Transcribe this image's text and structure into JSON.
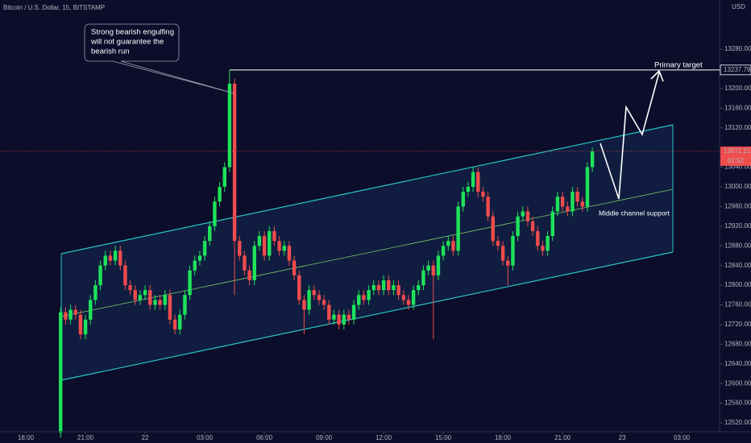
{
  "chart_data": {
    "type": "candlestick",
    "title": "Bitcoin / U.S. Dollar, 15, BITSTAMP",
    "currency": "USD",
    "countdown": "01:52",
    "up_color": "#1ee35a",
    "down_color": "#ef4c4c",
    "grid": false,
    "annotations": {
      "callout": [
        "Strong bearish engulfing",
        "will not guarantee the",
        "bearish run"
      ],
      "target": "Primary target",
      "support": "Middle channel support"
    },
    "xlim": [
      -1.3,
      34.9
    ],
    "xticks": [
      {
        "value": 0,
        "label": "18:00"
      },
      {
        "value": 3,
        "label": "21:00"
      },
      {
        "value": 6,
        "label": "22"
      },
      {
        "value": 9,
        "label": "03:00"
      },
      {
        "value": 12,
        "label": "06:00"
      },
      {
        "value": 15,
        "label": "09:00"
      },
      {
        "value": 18,
        "label": "12:00"
      },
      {
        "value": 21,
        "label": "15:00"
      },
      {
        "value": 24,
        "label": "18:00"
      },
      {
        "value": 27,
        "label": "21:00"
      },
      {
        "value": 30,
        "label": "23"
      },
      {
        "value": 33,
        "label": "03:00"
      }
    ],
    "ylim": [
      12502,
      13380
    ],
    "yticks": [
      {
        "value": 12520,
        "label": "12520.00"
      },
      {
        "value": 12560,
        "label": "12560.00"
      },
      {
        "value": 12600,
        "label": "12600.00"
      },
      {
        "value": 12640,
        "label": "12640.00"
      },
      {
        "value": 12680,
        "label": "12680.00"
      },
      {
        "value": 12720,
        "label": "12720.00"
      },
      {
        "value": 12760,
        "label": "12760.00"
      },
      {
        "value": 12800,
        "label": "12800.00"
      },
      {
        "value": 12840,
        "label": "12840.00"
      },
      {
        "value": 12880,
        "label": "12880.00"
      },
      {
        "value": 12920,
        "label": "12920.00"
      },
      {
        "value": 12960,
        "label": "12960.00"
      },
      {
        "value": 13000,
        "label": "13000.00"
      },
      {
        "value": 13040,
        "label": "13040.00"
      },
      {
        "value": 13120,
        "label": "13120.00"
      },
      {
        "value": 13160,
        "label": "13160.00"
      },
      {
        "value": 13200,
        "label": "13200.00"
      },
      {
        "value": 13280,
        "label": "13280.00"
      }
    ],
    "x": [
      1.75,
      2,
      2.25,
      2.5,
      2.75,
      3,
      3.25,
      3.5,
      3.75,
      4,
      4.25,
      4.5,
      4.75,
      5,
      5.25,
      5.5,
      5.75,
      6,
      6.25,
      6.5,
      6.75,
      7,
      7.25,
      7.5,
      7.75,
      8,
      8.25,
      8.5,
      8.75,
      9,
      9.25,
      9.5,
      9.75,
      10,
      10.25,
      10.5,
      10.75,
      11,
      11.25,
      11.5,
      11.75,
      12,
      12.25,
      12.5,
      12.75,
      13,
      13.25,
      13.5,
      13.75,
      14,
      14.25,
      14.5,
      14.75,
      15,
      15.25,
      15.5,
      15.75,
      16,
      16.25,
      16.5,
      16.75,
      17,
      17.25,
      17.5,
      17.75,
      18,
      18.25,
      18.5,
      18.75,
      19,
      19.25,
      19.5,
      19.75,
      20,
      20.25,
      20.5,
      20.75,
      21,
      21.25,
      21.5,
      21.75,
      22,
      22.25,
      22.5,
      22.75,
      23,
      23.25,
      23.5,
      23.75,
      24,
      24.25,
      24.5,
      24.75,
      25,
      25.25,
      25.5,
      25.75,
      26,
      26.25,
      26.5,
      26.75,
      27,
      27.25,
      27.5,
      27.75,
      28,
      28.25,
      28.5
    ],
    "open": [
      12500,
      12745,
      12730,
      12750,
      12740,
      12700,
      12730,
      12770,
      12800,
      12840,
      12860,
      12850,
      12870,
      12840,
      12800,
      12790,
      12770,
      12780,
      12790,
      12760,
      12770,
      12760,
      12780,
      12730,
      12710,
      12740,
      12780,
      12830,
      12850,
      12860,
      12890,
      12920,
      12970,
      13000,
      13040,
      13210,
      12890,
      12860,
      12830,
      12810,
      12880,
      12900,
      12860,
      12910,
      12890,
      12870,
      12880,
      12850,
      12820,
      12770,
      12750,
      12790,
      12780,
      12770,
      12760,
      12730,
      12740,
      12720,
      12740,
      12730,
      12760,
      12780,
      12770,
      12790,
      12800,
      12790,
      12810,
      12790,
      12800,
      12780,
      12770,
      12760,
      12790,
      12800,
      12830,
      12840,
      12820,
      12860,
      12880,
      12890,
      12870,
      12960,
      12990,
      13000,
      13030,
      12990,
      12980,
      12940,
      12890,
      12880,
      12850,
      12840,
      12900,
      12940,
      12950,
      12930,
      12910,
      12880,
      12870,
      12900,
      12950,
      12980,
      12960,
      12950,
      12990,
      12970,
      12960,
      13040
    ],
    "high": [
      12755,
      12755,
      12760,
      12760,
      12750,
      12740,
      12780,
      12810,
      12850,
      12870,
      12870,
      12880,
      12880,
      12850,
      12810,
      12800,
      12790,
      12800,
      12800,
      12780,
      12780,
      12790,
      12790,
      12740,
      12750,
      12790,
      12840,
      12860,
      12870,
      12900,
      12930,
      12980,
      13010,
      13050,
      13237.79,
      13220,
      12900,
      12870,
      12840,
      12890,
      12910,
      12910,
      12920,
      12920,
      12900,
      12890,
      12890,
      12860,
      12830,
      12780,
      12800,
      12800,
      12790,
      12780,
      12770,
      12750,
      12750,
      12750,
      12750,
      12770,
      12790,
      12790,
      12800,
      12810,
      12810,
      12820,
      12820,
      12810,
      12810,
      12790,
      12780,
      12800,
      12810,
      12840,
      12850,
      12850,
      12870,
      12890,
      12900,
      12900,
      12970,
      13000,
      13010,
      13040,
      13040,
      13000,
      12990,
      12950,
      12900,
      12890,
      12860,
      12910,
      12950,
      12960,
      12960,
      12940,
      12920,
      12890,
      12910,
      12960,
      12990,
      12990,
      12970,
      13000,
      13000,
      12980,
      13050,
      13080
    ],
    "low": [
      12490,
      12720,
      12720,
      12730,
      12690,
      12690,
      12720,
      12760,
      12790,
      12830,
      12840,
      12840,
      12830,
      12790,
      12780,
      12760,
      12760,
      12770,
      12750,
      12750,
      12750,
      12750,
      12720,
      12700,
      12700,
      12730,
      12770,
      12820,
      12840,
      12850,
      12880,
      12910,
      12960,
      12990,
      13030,
      12780,
      12850,
      12820,
      12800,
      12800,
      12870,
      12850,
      12850,
      12880,
      12860,
      12860,
      12840,
      12810,
      12760,
      12700,
      12740,
      12770,
      12760,
      12750,
      12720,
      12720,
      12710,
      12710,
      12720,
      12720,
      12750,
      12760,
      12760,
      12780,
      12780,
      12780,
      12780,
      12780,
      12770,
      12760,
      12750,
      12750,
      12780,
      12790,
      12820,
      12690,
      12810,
      12850,
      12870,
      12860,
      12860,
      12950,
      12980,
      12990,
      12980,
      12970,
      12930,
      12880,
      12870,
      12840,
      12800,
      12830,
      12890,
      12930,
      12920,
      12900,
      12870,
      12860,
      12860,
      12890,
      12940,
      12950,
      12940,
      12940,
      12960,
      12950,
      12950,
      13030
    ],
    "close": [
      12745,
      12730,
      12750,
      12740,
      12700,
      12730,
      12770,
      12800,
      12840,
      12860,
      12850,
      12870,
      12840,
      12800,
      12790,
      12770,
      12780,
      12790,
      12760,
      12770,
      12760,
      12780,
      12730,
      12710,
      12740,
      12780,
      12830,
      12850,
      12860,
      12890,
      12920,
      12970,
      13000,
      13040,
      13210,
      12890,
      12860,
      12830,
      12810,
      12880,
      12900,
      12860,
      12910,
      12890,
      12870,
      12880,
      12850,
      12820,
      12770,
      12750,
      12790,
      12780,
      12770,
      12760,
      12730,
      12740,
      12720,
      12740,
      12730,
      12760,
      12780,
      12770,
      12790,
      12800,
      12790,
      12810,
      12790,
      12800,
      12780,
      12770,
      12760,
      12790,
      12800,
      12830,
      12840,
      12820,
      12860,
      12880,
      12890,
      12870,
      12960,
      12990,
      13000,
      13030,
      12990,
      12980,
      12940,
      12890,
      12880,
      12850,
      12840,
      12900,
      12940,
      12950,
      12930,
      12910,
      12880,
      12870,
      12900,
      12950,
      12980,
      12960,
      12950,
      12990,
      12970,
      12960,
      13040,
      13072.21
    ]
  }
}
